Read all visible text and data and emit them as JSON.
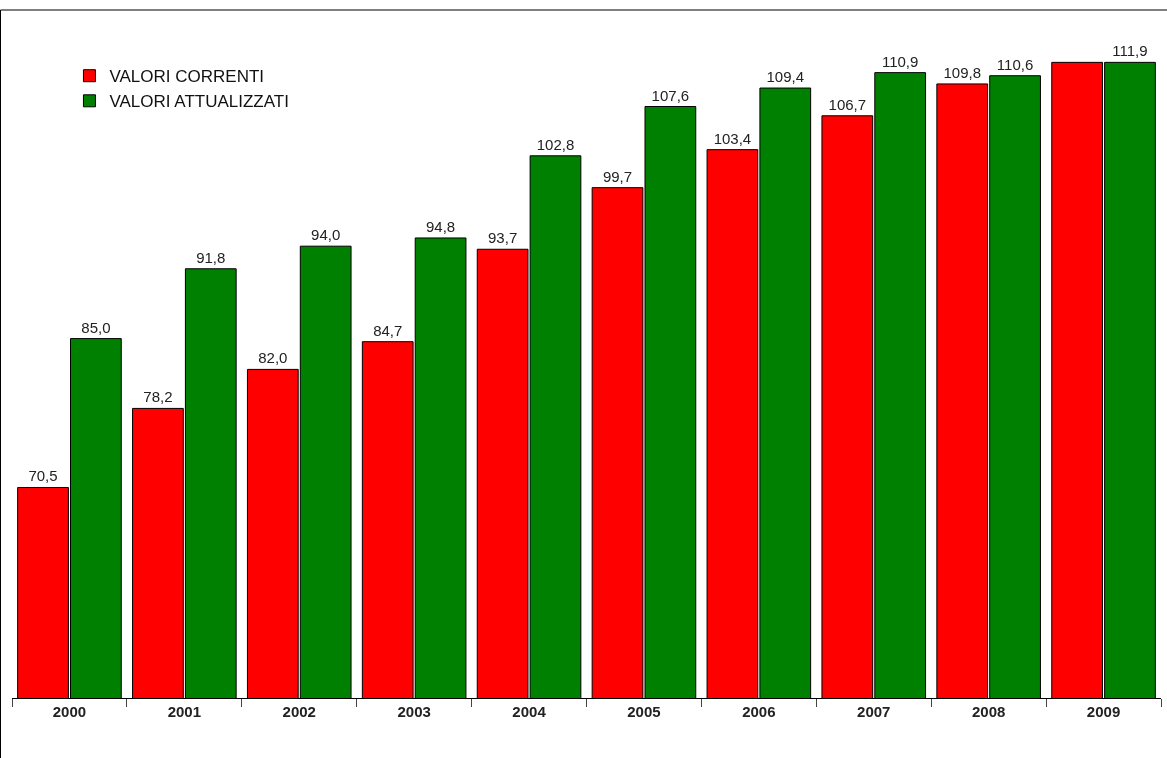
{
  "chart_data": {
    "type": "bar",
    "categories": [
      "2000",
      "2001",
      "2002",
      "2003",
      "2004",
      "2005",
      "2006",
      "2007",
      "2008",
      "2009"
    ],
    "series": [
      {
        "name": "VALORI CORRENTI",
        "color": "#ff0000",
        "values": [
          70.5,
          78.2,
          82.0,
          84.7,
          93.7,
          99.7,
          103.4,
          106.7,
          109.8,
          111.9
        ],
        "value_labels": [
          "70,5",
          "78,2",
          "82,0",
          "84,7",
          "93,7",
          "99,7",
          "103,4",
          "106,7",
          "109,8",
          null
        ]
      },
      {
        "name": "VALORI ATTUALIZZATI",
        "color": "#008000",
        "values": [
          85.0,
          91.8,
          94.0,
          94.8,
          102.8,
          107.6,
          109.4,
          110.9,
          110.6,
          111.9
        ],
        "value_labels": [
          "85,0",
          "91,8",
          "94,0",
          "94,8",
          "102,8",
          "107,6",
          "109,4",
          "110,9",
          "110,6",
          "111,9"
        ]
      }
    ],
    "ylim": [
      50,
      117
    ],
    "legend": "top left",
    "tick_labels": "x"
  }
}
